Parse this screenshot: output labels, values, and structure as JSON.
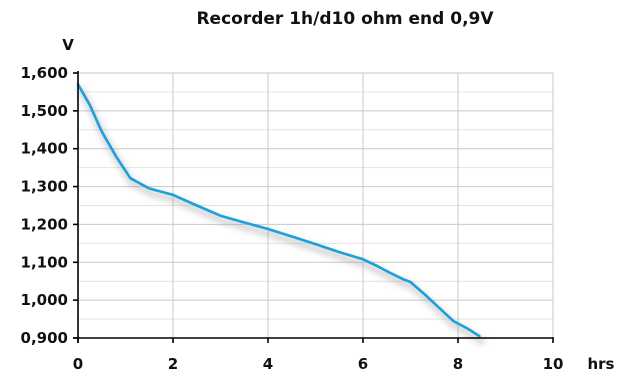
{
  "chart_data": {
    "type": "line",
    "title": "Recorder 1h/d10 ohm end 0,9V",
    "xlabel": "hrs",
    "ylabel": "V",
    "xlim": [
      0,
      10
    ],
    "ylim": [
      0.9,
      1.6
    ],
    "x_ticks": [
      0,
      2,
      4,
      6,
      8,
      10
    ],
    "x_tick_labels": [
      "0",
      "2",
      "4",
      "6",
      "8",
      "10"
    ],
    "y_ticks": [
      0.9,
      1.0,
      1.1,
      1.2,
      1.3,
      1.4,
      1.5,
      1.6
    ],
    "y_tick_labels": [
      "0,900",
      "1,000",
      "1,100",
      "1,200",
      "1,300",
      "1,400",
      "1,500",
      "1,600"
    ],
    "grid": true,
    "legend": "none",
    "series": [
      {
        "color": "#1ca0dc",
        "x": [
          0,
          0.25,
          0.5,
          0.8,
          1.1,
          1.5,
          2.0,
          2.5,
          3.0,
          3.5,
          4.0,
          4.5,
          5.0,
          5.5,
          6.0,
          6.3,
          6.6,
          6.85,
          7.0,
          7.3,
          7.6,
          7.9,
          8.2,
          8.45
        ],
        "y": [
          1.57,
          1.515,
          1.445,
          1.38,
          1.322,
          1.295,
          1.278,
          1.25,
          1.223,
          1.205,
          1.188,
          1.168,
          1.148,
          1.127,
          1.108,
          1.09,
          1.07,
          1.055,
          1.048,
          1.015,
          0.98,
          0.945,
          0.925,
          0.905
        ]
      }
    ]
  }
}
